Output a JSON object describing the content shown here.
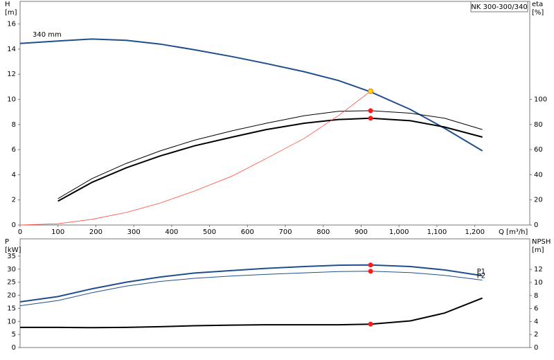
{
  "chart_data": [
    {
      "type": "line",
      "title": "NK 300-300/340",
      "xlabel": "Q [m³/h]",
      "ylabel": [
        "H",
        "[m]"
      ],
      "y2label": [
        "eta",
        "[%]"
      ],
      "xlim": [
        0,
        1345
      ],
      "ylim": [
        0,
        17.8
      ],
      "y2lim": [
        0,
        178
      ],
      "xticks": [
        0,
        100,
        200,
        300,
        400,
        500,
        600,
        700,
        800,
        900,
        {
          "value": 1000,
          "label": "1,000"
        },
        {
          "value": 1100,
          "label": "1,100"
        },
        {
          "value": 1200,
          "label": "1,200"
        }
      ],
      "yticks": [
        0,
        2,
        4,
        6,
        8,
        10,
        12,
        14,
        16
      ],
      "y2ticks": [
        0,
        20,
        40,
        60,
        80,
        100
      ],
      "grid": false,
      "series": [
        {
          "name": "340 mm",
          "color": "#1f4e8c",
          "line_width": 2,
          "x": [
            0,
            100,
            190,
            280,
            370,
            460,
            560,
            650,
            750,
            840,
            925,
            1030,
            1120,
            1220
          ],
          "values": [
            14.45,
            14.65,
            14.8,
            14.7,
            14.4,
            13.95,
            13.4,
            12.85,
            12.2,
            11.5,
            10.6,
            9.2,
            7.7,
            5.9
          ]
        },
        {
          "color": "#000000",
          "line_width": 1,
          "axis": "y2",
          "x": [
            100,
            190,
            280,
            370,
            460,
            560,
            650,
            750,
            840,
            925,
            1030,
            1120,
            1220
          ],
          "values": [
            21,
            37,
            49,
            59,
            67.5,
            75,
            81,
            87,
            90.5,
            91,
            89,
            85,
            76
          ]
        },
        {
          "color": "#000000",
          "line_width": 2,
          "axis": "y2",
          "x": [
            100,
            190,
            280,
            370,
            460,
            560,
            650,
            750,
            840,
            925,
            1030,
            1120,
            1220
          ],
          "values": [
            19,
            34,
            45.5,
            55,
            63,
            70,
            76,
            81,
            84,
            85,
            83,
            78,
            70
          ]
        },
        {
          "color": "#ff4a3d",
          "line_width": 0.8,
          "x": [
            0,
            100,
            190,
            280,
            370,
            460,
            560,
            650,
            750,
            840,
            925
          ],
          "values": [
            0,
            0.1,
            0.45,
            1.0,
            1.75,
            2.7,
            3.9,
            5.3,
            6.9,
            8.7,
            10.65
          ]
        },
        {
          "color": "#ffd21f",
          "marker": true,
          "x": [
            925
          ],
          "values": [
            10.65
          ]
        },
        {
          "color": "#ff1a1a",
          "marker": true,
          "axis": "y2",
          "x": [
            925,
            925
          ],
          "values": [
            91,
            85
          ]
        }
      ]
    },
    {
      "type": "line",
      "ylabel": [
        "P",
        "[kW]"
      ],
      "y2label": [
        "NPSH",
        "[m]"
      ],
      "xlim": [
        0,
        1345
      ],
      "ylim": [
        0,
        41.6
      ],
      "y2lim": [
        0,
        16.7
      ],
      "yticks": [
        0,
        5,
        10,
        15,
        20,
        25,
        30,
        35
      ],
      "y2ticks": [
        0,
        2,
        4,
        6,
        8,
        10,
        12
      ],
      "grid": false,
      "series": [
        {
          "name": "P1",
          "color": "#1f4e8c",
          "line_width": 2,
          "x": [
            0,
            100,
            190,
            280,
            370,
            460,
            560,
            650,
            750,
            840,
            925,
            1030,
            1120,
            1220
          ],
          "values": [
            17.5,
            19.5,
            22.5,
            25,
            27,
            28.5,
            29.5,
            30.3,
            31,
            31.5,
            31.6,
            31,
            29.7,
            27.5
          ]
        },
        {
          "name": "P2",
          "color": "#1f4e8c",
          "line_width": 1,
          "x": [
            0,
            100,
            190,
            280,
            370,
            460,
            560,
            650,
            750,
            840,
            925,
            1030,
            1120,
            1220
          ],
          "values": [
            16,
            18,
            21,
            23.5,
            25.3,
            26.5,
            27.4,
            28,
            28.6,
            29.1,
            29.2,
            28.7,
            27.6,
            25.8
          ]
        },
        {
          "color": "#000000",
          "line_width": 2,
          "axis": "y2",
          "x": [
            0,
            100,
            190,
            280,
            370,
            460,
            560,
            650,
            750,
            840,
            925,
            1030,
            1120,
            1220
          ],
          "values": [
            3.1,
            3.1,
            3.05,
            3.1,
            3.2,
            3.35,
            3.45,
            3.5,
            3.5,
            3.5,
            3.6,
            4.1,
            5.3,
            7.6
          ]
        },
        {
          "color": "#ff1a1a",
          "marker": true,
          "x": [
            925,
            925
          ],
          "values": [
            31.6,
            29.2
          ]
        },
        {
          "color": "#ff1a1a",
          "marker": true,
          "axis": "y2",
          "x": [
            925
          ],
          "values": [
            3.6
          ]
        }
      ]
    }
  ]
}
